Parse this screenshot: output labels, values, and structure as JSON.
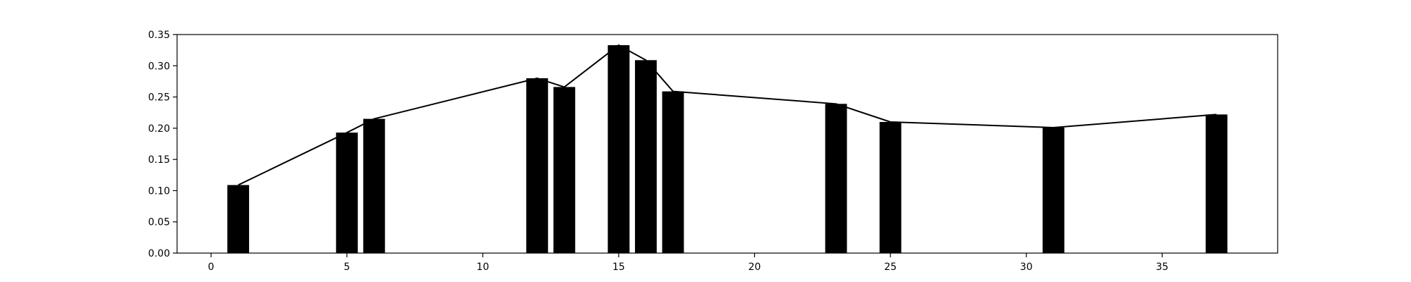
{
  "chart_data": {
    "type": "bar",
    "title": "",
    "xlabel": "",
    "ylabel": "",
    "xlim": [
      -1.25,
      39.25
    ],
    "ylim": [
      0,
      0.35
    ],
    "x_ticks": [
      0,
      5,
      10,
      15,
      20,
      25,
      30,
      35
    ],
    "y_ticks": [
      0.0,
      0.05,
      0.1,
      0.15,
      0.2,
      0.25,
      0.3,
      0.35
    ],
    "grid": false,
    "bar_color": "#000000",
    "line_color": "#000000",
    "bar_width": 0.8,
    "series": [
      {
        "type": "bar",
        "x": [
          1,
          5,
          6,
          12,
          13,
          15,
          16,
          17,
          23,
          25,
          31,
          37
        ],
        "values": [
          0.109,
          0.193,
          0.215,
          0.28,
          0.266,
          0.333,
          0.309,
          0.259,
          0.239,
          0.21,
          0.201,
          0.222
        ]
      },
      {
        "type": "line",
        "x": [
          1,
          5,
          6,
          12,
          13,
          15,
          16,
          17,
          23,
          25,
          31,
          37
        ],
        "values": [
          0.109,
          0.193,
          0.215,
          0.28,
          0.266,
          0.333,
          0.309,
          0.259,
          0.239,
          0.21,
          0.201,
          0.222
        ]
      }
    ]
  }
}
